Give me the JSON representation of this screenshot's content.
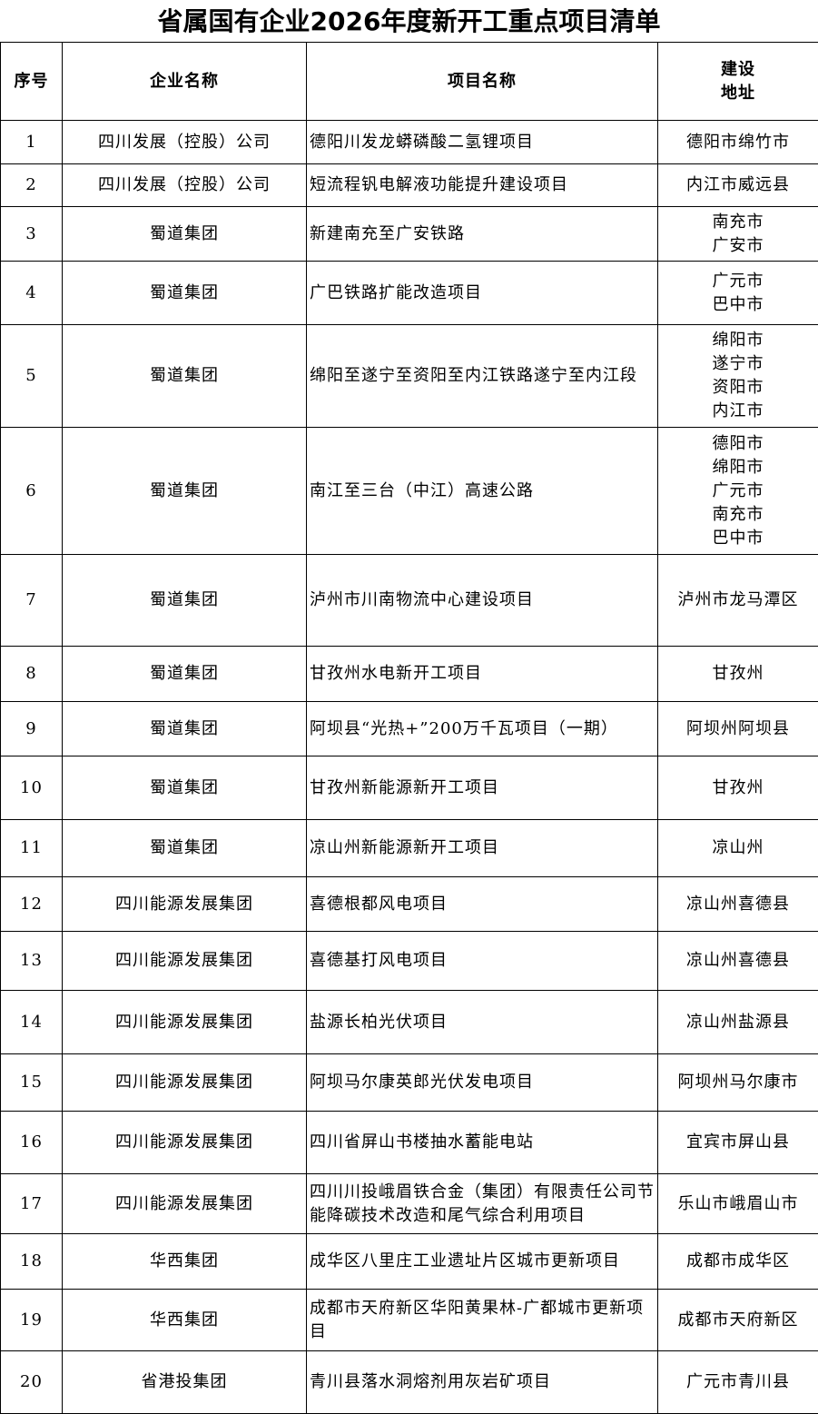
{
  "title": "省属国有企业2026年度新开工重点项目清单",
  "headers": [
    "序号",
    "企业名称",
    "项目名称",
    "建设\n地址"
  ],
  "rows": [
    {
      "no": "1",
      "company": "四川发展（控股）公司",
      "project": "德阳川发龙蟒磷酸二氢锂项目",
      "address": "德阳市绵竹市"
    },
    {
      "no": "2",
      "company": "四川发展（控股）公司",
      "project": "短流程钒电解液功能提升建设项目",
      "address": "内江市威远县"
    },
    {
      "no": "3",
      "company": "蜀道集团",
      "project": "新建南充至广安铁路",
      "address": "南充市\n广安市"
    },
    {
      "no": "4",
      "company": "蜀道集团",
      "project": "广巴铁路扩能改造项目",
      "address": "广元市\n巴中市"
    },
    {
      "no": "5",
      "company": "蜀道集团",
      "project": "绵阳至遂宁至资阳至内江铁路遂宁至内江段",
      "address": "绵阳市\n遂宁市\n资阳市\n内江市"
    },
    {
      "no": "6",
      "company": "蜀道集团",
      "project": "南江至三台（中江）高速公路",
      "address": "德阳市\n绵阳市\n广元市\n南充市\n巴中市"
    },
    {
      "no": "7",
      "company": "蜀道集团",
      "project": "泸州市川南物流中心建设项目",
      "address": "泸州市龙马潭区"
    },
    {
      "no": "8",
      "company": "蜀道集团",
      "project": "甘孜州水电新开工项目",
      "address": "甘孜州"
    },
    {
      "no": "9",
      "company": "蜀道集团",
      "project": "阿坝县“光热+”200万千瓦项目（一期）",
      "address": "阿坝州阿坝县"
    },
    {
      "no": "10",
      "company": "蜀道集团",
      "project": "甘孜州新能源新开工项目",
      "address": "甘孜州"
    },
    {
      "no": "11",
      "company": "蜀道集团",
      "project": "凉山州新能源新开工项目",
      "address": "凉山州"
    },
    {
      "no": "12",
      "company": "四川能源发展集团",
      "project": "喜德根都风电项目",
      "address": "凉山州喜德县"
    },
    {
      "no": "13",
      "company": "四川能源发展集团",
      "project": "喜德基打风电项目",
      "address": "凉山州喜德县"
    },
    {
      "no": "14",
      "company": "四川能源发展集团",
      "project": "盐源长柏光伏项目",
      "address": "凉山州盐源县"
    },
    {
      "no": "15",
      "company": "四川能源发展集团",
      "project": "阿坝马尔康英郎光伏发电项目",
      "address": "阿坝州马尔康市"
    },
    {
      "no": "16",
      "company": "四川能源发展集团",
      "project": "四川省屏山书楼抽水蓄能电站",
      "address": "宜宾市屏山县"
    },
    {
      "no": "17",
      "company": "四川能源发展集团",
      "project": "四川川投峨眉铁合金（集团）有限责任公司节能降碳技术改造和尾气综合利用项目",
      "address": "乐山市峨眉山市"
    },
    {
      "no": "18",
      "company": "华西集团",
      "project": "成华区八里庄工业遗址片区城市更新项目",
      "address": "成都市成华区"
    },
    {
      "no": "19",
      "company": "华西集团",
      "project": "成都市天府新区华阳黄果林-广都城市更新项目",
      "address": "成都市天府新区"
    },
    {
      "no": "20",
      "company": "省港投集团",
      "project": "青川县落水洞熔剂用灰岩矿项目",
      "address": "广元市青川县"
    }
  ]
}
